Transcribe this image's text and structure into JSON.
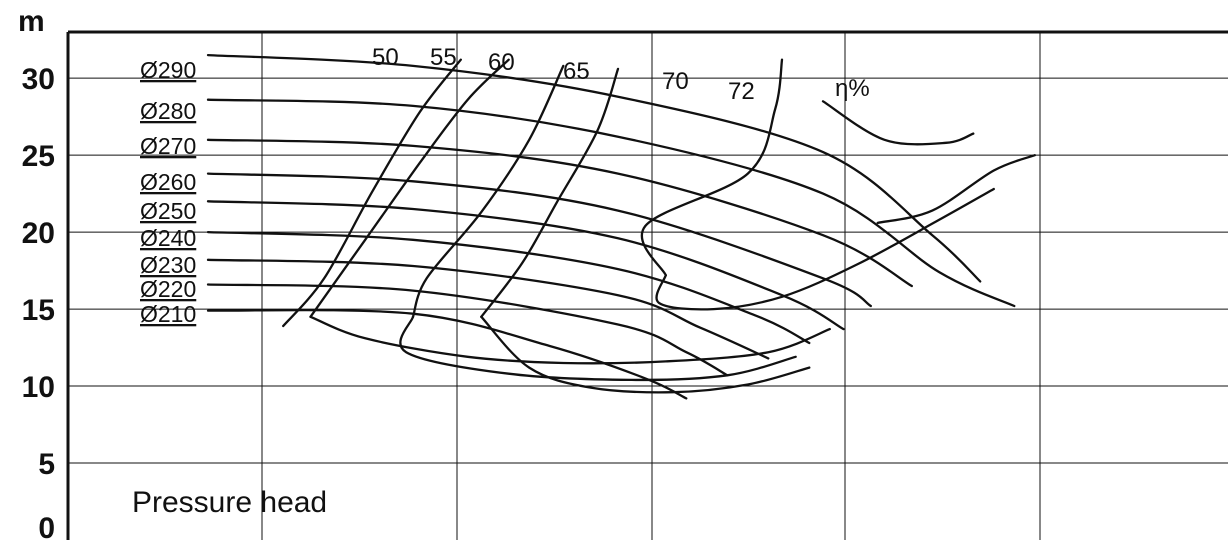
{
  "chart_data": {
    "type": "line",
    "title": "",
    "ylabel": "m",
    "xlabel": "",
    "ylim": [
      0,
      33
    ],
    "yticks": [
      "0",
      "5",
      "10",
      "15",
      "20",
      "25",
      "30"
    ],
    "grid": true,
    "annotation": "Pressure head",
    "efficiency_unit": "η%",
    "diameter_series": [
      {
        "name": "Ø290",
        "values": [
          [
            0,
            31.5
          ],
          [
            1.5,
            30.8
          ],
          [
            3,
            28.8
          ],
          [
            4.5,
            25.2
          ],
          [
            5.3,
            19.8
          ],
          [
            5.65,
            16.8
          ]
        ]
      },
      {
        "name": "Ø280",
        "values": [
          [
            0,
            28.6
          ],
          [
            1.5,
            28.2
          ],
          [
            3,
            26.2
          ],
          [
            4.5,
            22.5
          ],
          [
            5.35,
            17.4
          ],
          [
            5.9,
            15.2
          ]
        ]
      },
      {
        "name": "Ø270",
        "values": [
          [
            0,
            26.0
          ],
          [
            1.5,
            25.6
          ],
          [
            3,
            23.8
          ],
          [
            4.5,
            19.8
          ],
          [
            5.15,
            16.5
          ]
        ]
      },
      {
        "name": "Ø260",
        "values": [
          [
            0,
            23.8
          ],
          [
            1.5,
            23.3
          ],
          [
            3,
            21.4
          ],
          [
            4.5,
            17.0
          ],
          [
            4.85,
            15.2
          ]
        ]
      },
      {
        "name": "Ø250",
        "values": [
          [
            0,
            22.0
          ],
          [
            1.5,
            21.5
          ],
          [
            3,
            19.6
          ],
          [
            4.2,
            15.9
          ],
          [
            4.65,
            13.7
          ]
        ]
      },
      {
        "name": "Ø240",
        "values": [
          [
            0,
            20.0
          ],
          [
            1.5,
            19.5
          ],
          [
            3,
            17.6
          ],
          [
            4.0,
            14.6
          ],
          [
            4.4,
            12.8
          ]
        ]
      },
      {
        "name": "Ø230",
        "values": [
          [
            0,
            18.2
          ],
          [
            1.5,
            17.8
          ],
          [
            3,
            15.9
          ],
          [
            3.6,
            13.8
          ],
          [
            4.1,
            11.8
          ]
        ]
      },
      {
        "name": "Ø220",
        "values": [
          [
            0,
            16.6
          ],
          [
            1.5,
            16.2
          ],
          [
            3,
            14.0
          ],
          [
            3.5,
            12.2
          ],
          [
            3.8,
            10.7
          ]
        ]
      },
      {
        "name": "Ø210",
        "values": [
          [
            0,
            14.9
          ],
          [
            1.5,
            14.7
          ],
          [
            2.5,
            12.6
          ],
          [
            3.2,
            10.5
          ],
          [
            3.5,
            9.2
          ]
        ]
      }
    ],
    "efficiency_series": [
      {
        "name": "50",
        "values": [
          [
            0.55,
            13.9
          ],
          [
            0.85,
            17.0
          ],
          [
            1.2,
            22.6
          ],
          [
            1.55,
            27.8
          ],
          [
            1.85,
            31.2
          ]
        ]
      },
      {
        "name": "55",
        "values": [
          [
            0.75,
            14.5
          ],
          [
            1.15,
            19.5
          ],
          [
            1.55,
            24.5
          ],
          [
            1.9,
            28.6
          ],
          [
            2.2,
            31.2
          ]
        ]
      },
      {
        "name": "60",
        "values": [
          [
            1.5,
            14.5
          ],
          [
            1.6,
            17.0
          ],
          [
            2.0,
            21.3
          ],
          [
            2.35,
            26.0
          ],
          [
            2.6,
            30.8
          ]
        ]
      },
      {
        "name": "65",
        "values": [
          [
            2.0,
            14.5
          ],
          [
            2.3,
            18.0
          ],
          [
            2.55,
            21.9
          ],
          [
            2.85,
            26.6
          ],
          [
            3.0,
            30.6
          ]
        ]
      },
      {
        "name": "70",
        "values": [
          [
            3.35,
            17.2
          ],
          [
            3.2,
            20.4
          ],
          [
            3.95,
            23.8
          ],
          [
            4.15,
            28.0
          ],
          [
            4.2,
            31.2
          ]
        ]
      },
      {
        "name": "72",
        "values": [
          [
            4.5,
            28.5
          ],
          [
            4.95,
            26.0
          ],
          [
            5.4,
            25.8
          ],
          [
            5.6,
            26.4
          ]
        ]
      }
    ],
    "loop_series": [
      {
        "name": "55",
        "values": [
          [
            0.75,
            14.5
          ],
          [
            1.15,
            13.1
          ],
          [
            1.9,
            11.9
          ],
          [
            2.6,
            11.5
          ],
          [
            3.35,
            11.6
          ],
          [
            4.1,
            12.2
          ],
          [
            4.55,
            13.7
          ]
        ]
      },
      {
        "name": "60",
        "values": [
          [
            1.5,
            14.5
          ],
          [
            1.45,
            12.2
          ],
          [
            2.2,
            10.8
          ],
          [
            3.1,
            10.4
          ],
          [
            3.8,
            10.7
          ],
          [
            4.3,
            11.9
          ]
        ]
      },
      {
        "name": "65",
        "values": [
          [
            2.0,
            14.5
          ],
          [
            2.35,
            11.2
          ],
          [
            2.8,
            9.9
          ],
          [
            3.4,
            9.6
          ],
          [
            3.95,
            10.1
          ],
          [
            4.4,
            11.2
          ]
        ]
      },
      {
        "name": "70",
        "values": [
          [
            3.35,
            17.2
          ],
          [
            3.3,
            15.4
          ],
          [
            3.7,
            15.0
          ],
          [
            4.2,
            15.8
          ],
          [
            4.75,
            17.9
          ],
          [
            5.35,
            20.8
          ],
          [
            5.75,
            22.8
          ]
        ]
      },
      {
        "name": "72",
        "values": [
          [
            4.9,
            20.6
          ],
          [
            5.3,
            21.4
          ],
          [
            5.75,
            24.0
          ],
          [
            6.05,
            25.0
          ]
        ]
      }
    ]
  }
}
